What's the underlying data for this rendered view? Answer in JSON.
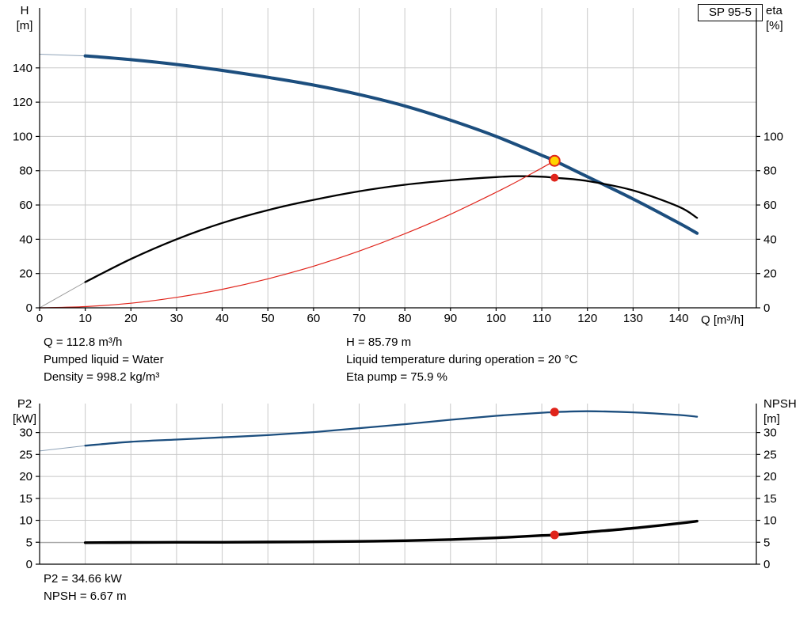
{
  "title_box": "SP 95-5",
  "colors": {
    "background": "#ffffff",
    "grid": "#c8c8c8",
    "axis": "#000000",
    "curve_blue": "#1c4e7e",
    "curve_black": "#000000",
    "curve_red": "#e0241b",
    "marker_yellow": "#ffd400",
    "marker_red": "#e0241b"
  },
  "chart_data": [
    {
      "type": "line",
      "name": "performance",
      "title": "SP 95-5",
      "xlabel": "Q [m³/h]",
      "xlim": [
        0,
        157
      ],
      "x_ticks": [
        0,
        10,
        20,
        30,
        40,
        50,
        60,
        70,
        80,
        90,
        100,
        110,
        120,
        130,
        140
      ],
      "left_axis": {
        "label": "H",
        "unit": "[m]",
        "lim": [
          0,
          175
        ],
        "ticks": [
          0,
          20,
          40,
          60,
          80,
          100,
          120,
          140
        ]
      },
      "right_axis": {
        "label": "eta",
        "unit": "[%]",
        "lim": [
          0,
          175
        ],
        "ticks": [
          0,
          20,
          40,
          60,
          80,
          100
        ]
      },
      "grid": true,
      "legend": "none",
      "series": [
        {
          "name": "head-curve",
          "axis": "left",
          "color": "#1c4e7e",
          "width": 4,
          "thin_until": 10,
          "thin_color": "#8fa3b8",
          "points": [
            [
              0,
              148
            ],
            [
              10,
              147
            ],
            [
              20,
              144.8
            ],
            [
              30,
              142
            ],
            [
              40,
              138.5
            ],
            [
              50,
              134.5
            ],
            [
              60,
              130
            ],
            [
              70,
              124.5
            ],
            [
              80,
              117.8
            ],
            [
              90,
              109.5
            ],
            [
              100,
              100
            ],
            [
              110,
              89
            ],
            [
              112.8,
              85.79
            ],
            [
              120,
              76.5
            ],
            [
              130,
              63.5
            ],
            [
              140,
              49.5
            ],
            [
              144,
              43.5
            ]
          ]
        },
        {
          "name": "eta-curve",
          "axis": "right",
          "color": "#000000",
          "width": 2.3,
          "thin_until": 10,
          "thin_color": "#999999",
          "points": [
            [
              0,
              0
            ],
            [
              10,
              15
            ],
            [
              20,
              28.5
            ],
            [
              30,
              40
            ],
            [
              40,
              49.5
            ],
            [
              50,
              57
            ],
            [
              60,
              63
            ],
            [
              70,
              68
            ],
            [
              80,
              71.8
            ],
            [
              90,
              74.4
            ],
            [
              100,
              76.3
            ],
            [
              105,
              76.8
            ],
            [
              110,
              76.5
            ],
            [
              112.8,
              75.9
            ],
            [
              120,
              74
            ],
            [
              130,
              68.5
            ],
            [
              140,
              59
            ],
            [
              144,
              52.5
            ]
          ]
        },
        {
          "name": "system-curve",
          "axis": "left",
          "color": "#e0241b",
          "width": 1.2,
          "points": [
            [
              0,
              0
            ],
            [
              10,
              0.7
            ],
            [
              20,
              2.7
            ],
            [
              30,
              6.1
            ],
            [
              40,
              10.8
            ],
            [
              50,
              16.9
            ],
            [
              60,
              24.3
            ],
            [
              70,
              33.1
            ],
            [
              80,
              43.2
            ],
            [
              90,
              54.6
            ],
            [
              100,
              67.4
            ],
            [
              105,
              74.3
            ],
            [
              110,
              81.6
            ],
            [
              112.8,
              85.79
            ]
          ]
        }
      ],
      "markers": [
        {
          "name": "duty-point",
          "axis": "left",
          "x": 112.8,
          "y": 85.79,
          "r": 6.5,
          "fill": "#ffd400",
          "stroke": "#e0241b",
          "stroke_width": 2
        },
        {
          "name": "eta-duty-point",
          "axis": "right",
          "x": 112.8,
          "y": 75.9,
          "r": 5,
          "fill": "#e0241b"
        }
      ]
    },
    {
      "type": "line",
      "name": "power-npsh",
      "title": "",
      "xlabel": "",
      "xlim": [
        0,
        157
      ],
      "x_ticks": [
        0,
        10,
        20,
        30,
        40,
        50,
        60,
        70,
        80,
        90,
        100,
        110,
        120,
        130,
        140
      ],
      "left_axis": {
        "label": "P2",
        "unit": "[kW]",
        "lim": [
          0,
          36.6
        ],
        "ticks": [
          0,
          5,
          10,
          15,
          20,
          25,
          30
        ]
      },
      "right_axis": {
        "label": "NPSH",
        "unit": "[m]",
        "lim": [
          0,
          36.6
        ],
        "ticks": [
          0,
          5,
          10,
          15,
          20,
          25,
          30
        ]
      },
      "grid": true,
      "legend": "none",
      "series": [
        {
          "name": "p2-curve",
          "axis": "left",
          "color": "#1c4e7e",
          "width": 2.3,
          "thin_until": 10,
          "thin_color": "#8fa3b8",
          "points": [
            [
              0,
              25.8
            ],
            [
              10,
              27
            ],
            [
              20,
              27.9
            ],
            [
              30,
              28.4
            ],
            [
              40,
              28.9
            ],
            [
              50,
              29.4
            ],
            [
              60,
              30.1
            ],
            [
              70,
              31
            ],
            [
              80,
              31.9
            ],
            [
              90,
              32.9
            ],
            [
              100,
              33.8
            ],
            [
              110,
              34.5
            ],
            [
              112.8,
              34.66
            ],
            [
              120,
              34.85
            ],
            [
              130,
              34.6
            ],
            [
              140,
              34
            ],
            [
              144,
              33.6
            ]
          ]
        },
        {
          "name": "npsh-curve",
          "axis": "right",
          "color": "#000000",
          "width": 3.4,
          "thin_until": 10,
          "thin_color": "#999999",
          "points": [
            [
              0,
              4.9
            ],
            [
              10,
              4.9
            ],
            [
              20,
              4.95
            ],
            [
              30,
              5
            ],
            [
              40,
              5
            ],
            [
              50,
              5.05
            ],
            [
              60,
              5.1
            ],
            [
              70,
              5.2
            ],
            [
              80,
              5.35
            ],
            [
              90,
              5.6
            ],
            [
              100,
              6
            ],
            [
              110,
              6.55
            ],
            [
              112.8,
              6.67
            ],
            [
              120,
              7.3
            ],
            [
              130,
              8.2
            ],
            [
              140,
              9.3
            ],
            [
              144,
              9.8
            ]
          ]
        }
      ],
      "markers": [
        {
          "name": "p2-duty-point",
          "axis": "left",
          "x": 112.8,
          "y": 34.66,
          "r": 5.5,
          "fill": "#e0241b"
        },
        {
          "name": "npsh-duty-point",
          "axis": "right",
          "x": 112.8,
          "y": 6.67,
          "r": 5.5,
          "fill": "#e0241b"
        }
      ]
    }
  ],
  "top_info": {
    "col1": [
      "Q = 112.8 m³/h",
      "Pumped liquid = Water",
      "Density = 998.2 kg/m³"
    ],
    "col2": [
      "H = 85.79 m",
      "Liquid temperature during operation = 20 °C",
      "Eta pump = 75.9 %"
    ]
  },
  "bottom_info": [
    "P2 = 34.66 kW",
    "NPSH = 6.67 m"
  ]
}
